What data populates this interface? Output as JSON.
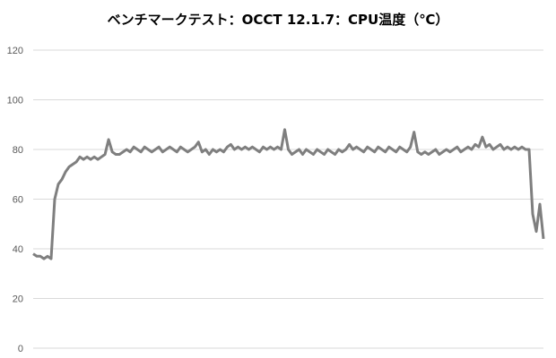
{
  "chart_data": {
    "type": "line",
    "title": "ベンチマークテスト：OCCT 12.1.7：CPU温度（℃）",
    "xlabel": "",
    "ylabel": "",
    "ylim": [
      0,
      120
    ],
    "yticks": [
      "0",
      "20",
      "40",
      "60",
      "80",
      "100",
      "120"
    ],
    "grid": true,
    "legend": "none",
    "colors": {
      "line": "#7f7f7f",
      "grid": "#d9d9d9"
    },
    "series": [
      {
        "values": [
          38,
          37,
          37,
          36,
          37,
          36,
          60,
          66,
          68,
          71,
          73,
          74,
          75,
          77,
          76,
          77,
          76,
          77,
          76,
          77,
          78,
          84,
          79,
          78,
          78,
          79,
          80,
          79,
          81,
          80,
          79,
          81,
          80,
          79,
          80,
          81,
          79,
          80,
          81,
          80,
          79,
          81,
          80,
          79,
          80,
          81,
          83,
          79,
          80,
          78,
          80,
          79,
          80,
          79,
          81,
          82,
          80,
          81,
          80,
          81,
          80,
          81,
          80,
          79,
          81,
          80,
          81,
          80,
          81,
          80,
          88,
          80,
          78,
          79,
          80,
          78,
          80,
          79,
          78,
          80,
          79,
          78,
          80,
          79,
          78,
          80,
          79,
          80,
          82,
          80,
          81,
          80,
          79,
          81,
          80,
          79,
          81,
          80,
          79,
          81,
          80,
          79,
          81,
          80,
          79,
          81,
          87,
          79,
          78,
          79,
          78,
          79,
          80,
          78,
          79,
          80,
          79,
          80,
          81,
          79,
          80,
          81,
          80,
          82,
          81,
          85,
          81,
          82,
          80,
          81,
          82,
          80,
          81,
          80,
          81,
          80,
          81,
          80,
          80,
          54,
          47,
          58,
          44
        ]
      }
    ]
  }
}
